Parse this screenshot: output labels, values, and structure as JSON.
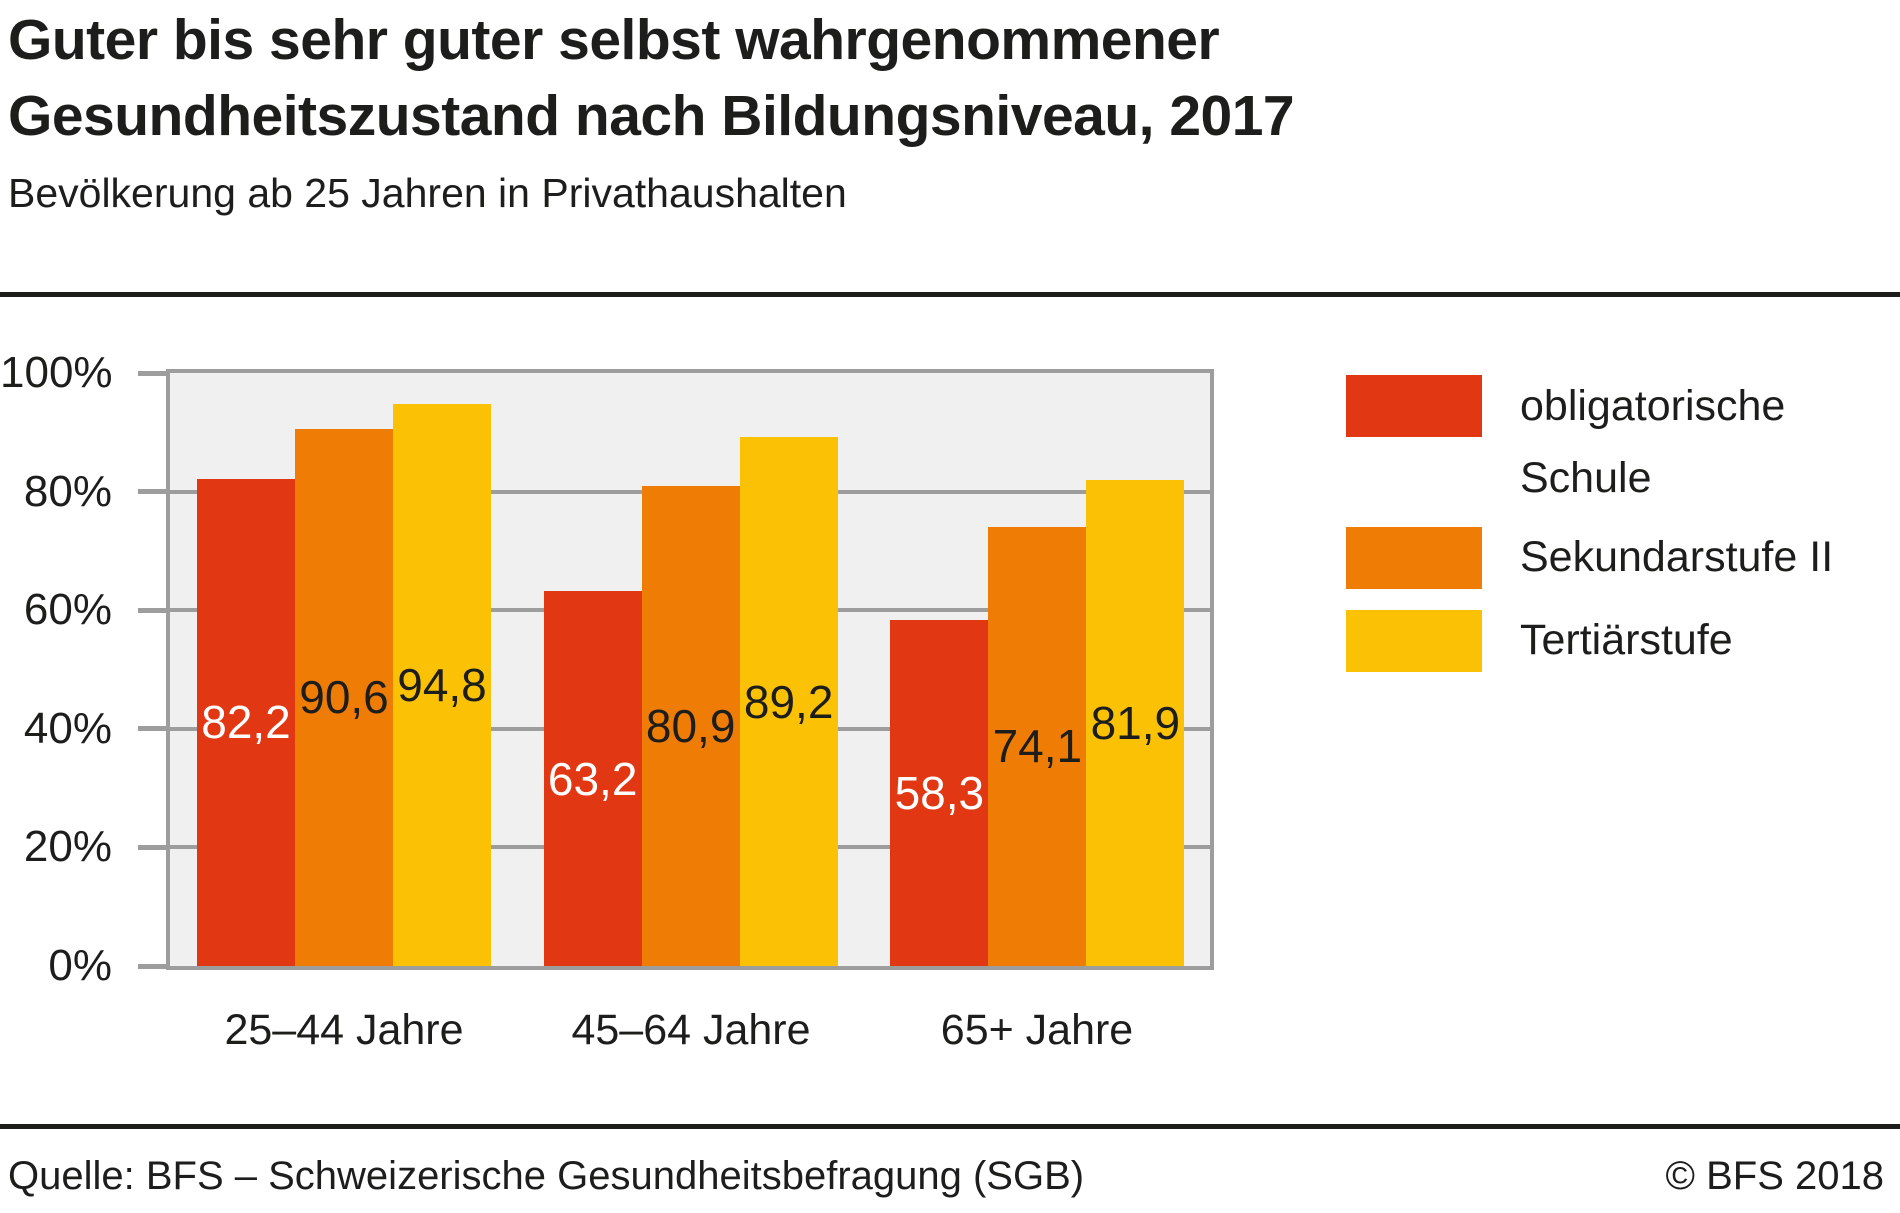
{
  "header": {
    "title_line1": "Guter bis sehr guter selbst wahrgenommener",
    "title_line2": "Gesundheitszustand nach Bildungsniveau, 2017",
    "subtitle": "Bevölkerung ab 25 Jahren in Privathaushalten"
  },
  "chart_data": {
    "type": "bar",
    "title": "Guter bis sehr guter selbst wahrgenommener Gesundheitszustand nach Bildungsniveau, 2017",
    "subtitle": "Bevölkerung ab 25 Jahren in Privathaushalten",
    "categories": [
      "25–44 Jahre",
      "45–64 Jahre",
      "65+ Jahre"
    ],
    "series": [
      {
        "name": "obligatorische Schule",
        "color": "#e23713",
        "label_color": "#ffffff",
        "values": [
          82.2,
          63.2,
          58.3
        ],
        "labels": [
          "82,2",
          "63,2",
          "58,3"
        ]
      },
      {
        "name": "Sekundarstufe II",
        "color": "#ef7d05",
        "label_color": "#1d1d1b",
        "values": [
          90.6,
          80.9,
          74.1
        ],
        "labels": [
          "90,6",
          "80,9",
          "74,1"
        ]
      },
      {
        "name": "Tertiärstufe",
        "color": "#fbc205",
        "label_color": "#1d1d1b",
        "values": [
          94.8,
          89.2,
          81.9
        ],
        "labels": [
          "94,8",
          "89,2",
          "81,9"
        ]
      }
    ],
    "xlabel": "",
    "ylabel": "",
    "ylim": [
      0,
      100
    ],
    "yticks": [
      "100%",
      "80%",
      "60%",
      "40%",
      "20%",
      "0%"
    ],
    "grid": true,
    "legend_position": "right",
    "plot_bg": "#f0f0f0",
    "grid_color": "#9d9d9d"
  },
  "footer": {
    "source": "Quelle: BFS – Schweizerische Gesundheitsbefragung (SGB)",
    "copyright": "© BFS 2018"
  },
  "colors": {
    "ink": "#1d1d1b",
    "grid": "#9d9d9d",
    "plot_background": "#f0f0f0"
  }
}
